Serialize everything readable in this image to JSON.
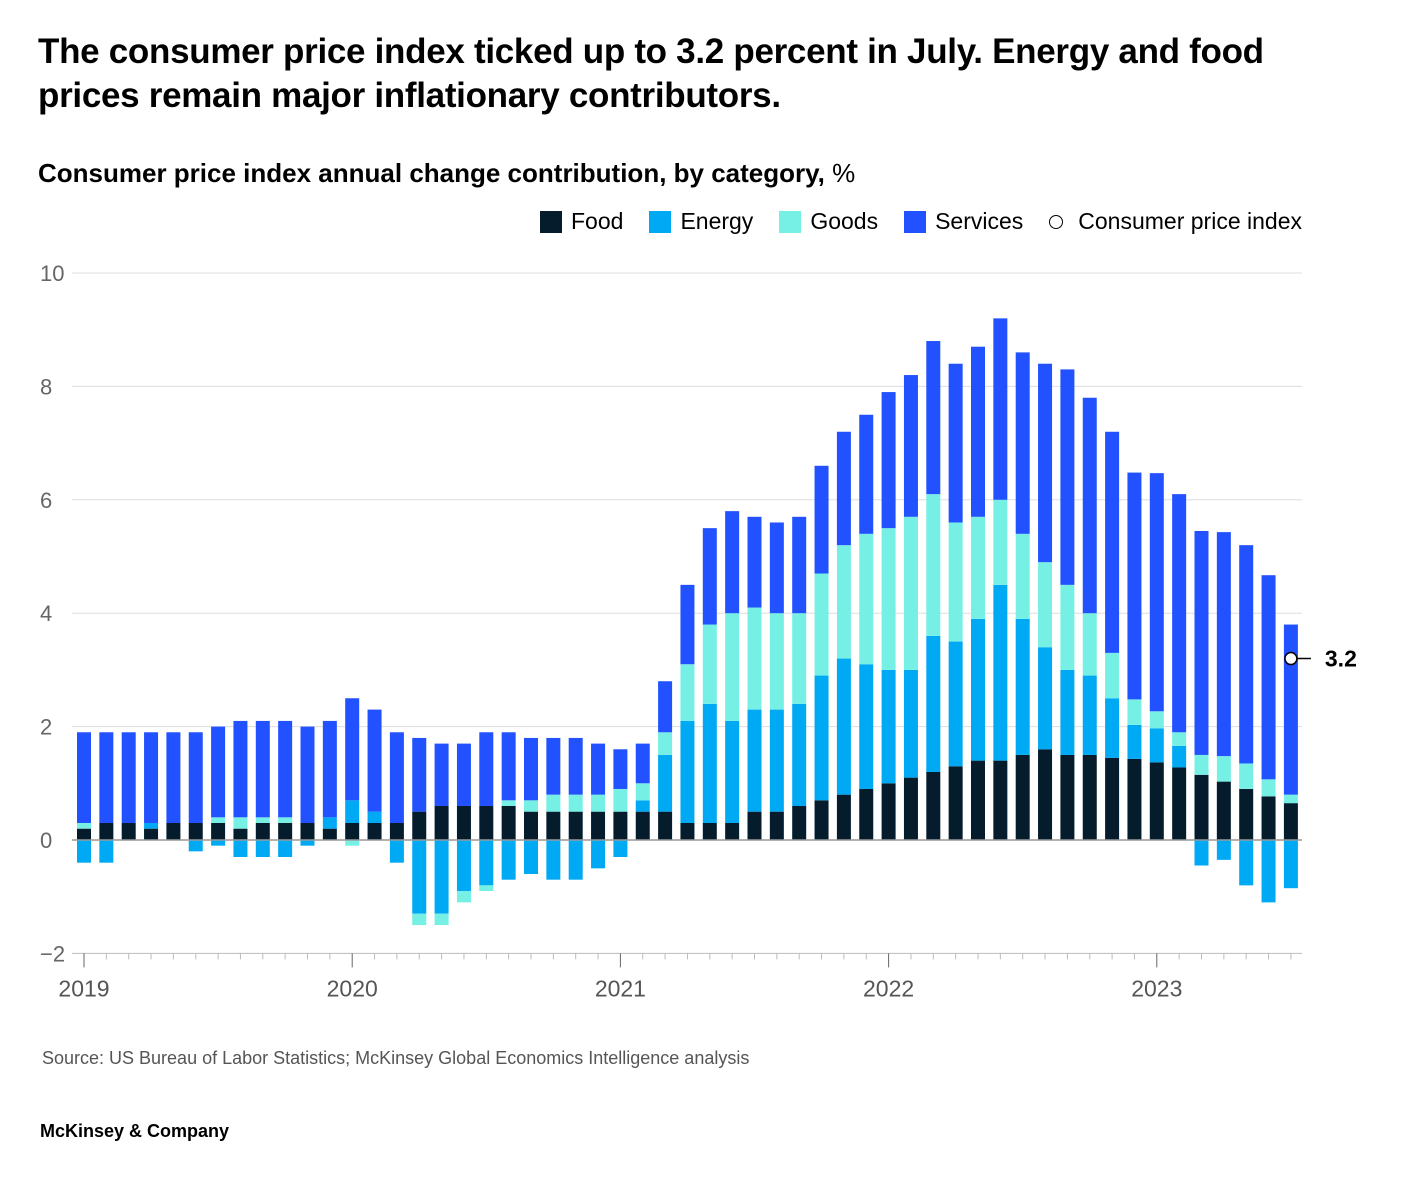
{
  "headline": "The consumer price index ticked up to 3.2 percent in July. Energy and food prices remain major inflationary contributors.",
  "source": "Source: US Bureau of Labor Statistics; McKinsey Global Economics Intelligence analysis",
  "brand": "McKinsey & Company",
  "chart_data": {
    "type": "bar",
    "stacked": true,
    "title": "Consumer price index annual change contribution, by category,",
    "unit": "%",
    "ylim": [
      -2,
      10
    ],
    "yticks": [
      "10",
      "8",
      "6",
      "4",
      "2",
      "0",
      "−2"
    ],
    "ytick_values": [
      10,
      8,
      6,
      4,
      2,
      0,
      -2
    ],
    "xtick_labels": [
      "2019",
      "2020",
      "2021",
      "2022",
      "2023"
    ],
    "grid": true,
    "legend_position": "top-right",
    "start": "2019-01",
    "frequency": "monthly",
    "colors": {
      "Food": "#051c2c",
      "Energy": "#00a9f4",
      "Goods": "#76f0e4",
      "Services": "#2251ff"
    },
    "legend": [
      "Food",
      "Energy",
      "Goods",
      "Services",
      "Consumer price index"
    ],
    "series": [
      {
        "name": "Food",
        "values": [
          0.2,
          0.3,
          0.3,
          0.2,
          0.3,
          0.3,
          0.3,
          0.2,
          0.3,
          0.3,
          0.3,
          0.2,
          0.3,
          0.3,
          0.3,
          0.5,
          0.6,
          0.6,
          0.6,
          0.6,
          0.5,
          0.5,
          0.5,
          0.5,
          0.5,
          0.5,
          0.5,
          0.3,
          0.3,
          0.3,
          0.5,
          0.5,
          0.6,
          0.7,
          0.8,
          0.9,
          1.0,
          1.1,
          1.2,
          1.3,
          1.4,
          1.4,
          1.5,
          1.6,
          1.5,
          1.5,
          1.45,
          1.43,
          1.37,
          1.28,
          1.15,
          1.03,
          0.9,
          0.77,
          0.65
        ]
      },
      {
        "name": "Energy",
        "values": [
          -0.4,
          -0.4,
          0,
          0.1,
          0,
          -0.2,
          -0.1,
          -0.3,
          -0.3,
          -0.3,
          -0.1,
          0.2,
          0.4,
          0.2,
          -0.4,
          -1.3,
          -1.3,
          -0.9,
          -0.8,
          -0.7,
          -0.6,
          -0.7,
          -0.7,
          -0.5,
          -0.3,
          0.2,
          1.0,
          1.8,
          2.1,
          1.8,
          1.8,
          1.8,
          1.8,
          2.2,
          2.4,
          2.2,
          2.0,
          1.9,
          2.4,
          2.2,
          2.5,
          3.1,
          2.4,
          1.8,
          1.5,
          1.4,
          1.05,
          0.6,
          0.6,
          0.38,
          -0.45,
          -0.35,
          -0.8,
          -1.1,
          -0.85
        ]
      },
      {
        "name": "Goods",
        "values": [
          0.1,
          0,
          0,
          0,
          0,
          0,
          0.1,
          0.2,
          0.1,
          0.1,
          0,
          0,
          -0.1,
          0,
          0,
          -0.2,
          -0.2,
          -0.2,
          -0.1,
          0.1,
          0.2,
          0.3,
          0.3,
          0.3,
          0.4,
          0.3,
          0.4,
          1.0,
          1.4,
          1.9,
          1.8,
          1.7,
          1.6,
          1.8,
          2.0,
          2.3,
          2.5,
          2.7,
          2.5,
          2.1,
          1.8,
          1.5,
          1.5,
          1.5,
          1.5,
          1.1,
          0.8,
          0.45,
          0.3,
          0.24,
          0.35,
          0.45,
          0.45,
          0.3,
          0.15
        ]
      },
      {
        "name": "Services",
        "values": [
          1.6,
          1.6,
          1.6,
          1.6,
          1.6,
          1.6,
          1.6,
          1.7,
          1.7,
          1.7,
          1.7,
          1.7,
          1.8,
          1.8,
          1.6,
          1.3,
          1.1,
          1.1,
          1.3,
          1.2,
          1.1,
          1.0,
          1.0,
          0.9,
          0.7,
          0.7,
          0.9,
          1.4,
          1.7,
          1.8,
          1.6,
          1.6,
          1.7,
          1.9,
          2.0,
          2.1,
          2.4,
          2.5,
          2.7,
          2.8,
          3.0,
          3.2,
          3.2,
          3.5,
          3.8,
          3.8,
          3.9,
          4.0,
          4.2,
          4.2,
          3.95,
          3.95,
          3.85,
          3.6,
          3.0
        ]
      }
    ],
    "cpi_annotation": {
      "month": "2023-07",
      "value": 3.2,
      "label": "3.2"
    }
  }
}
